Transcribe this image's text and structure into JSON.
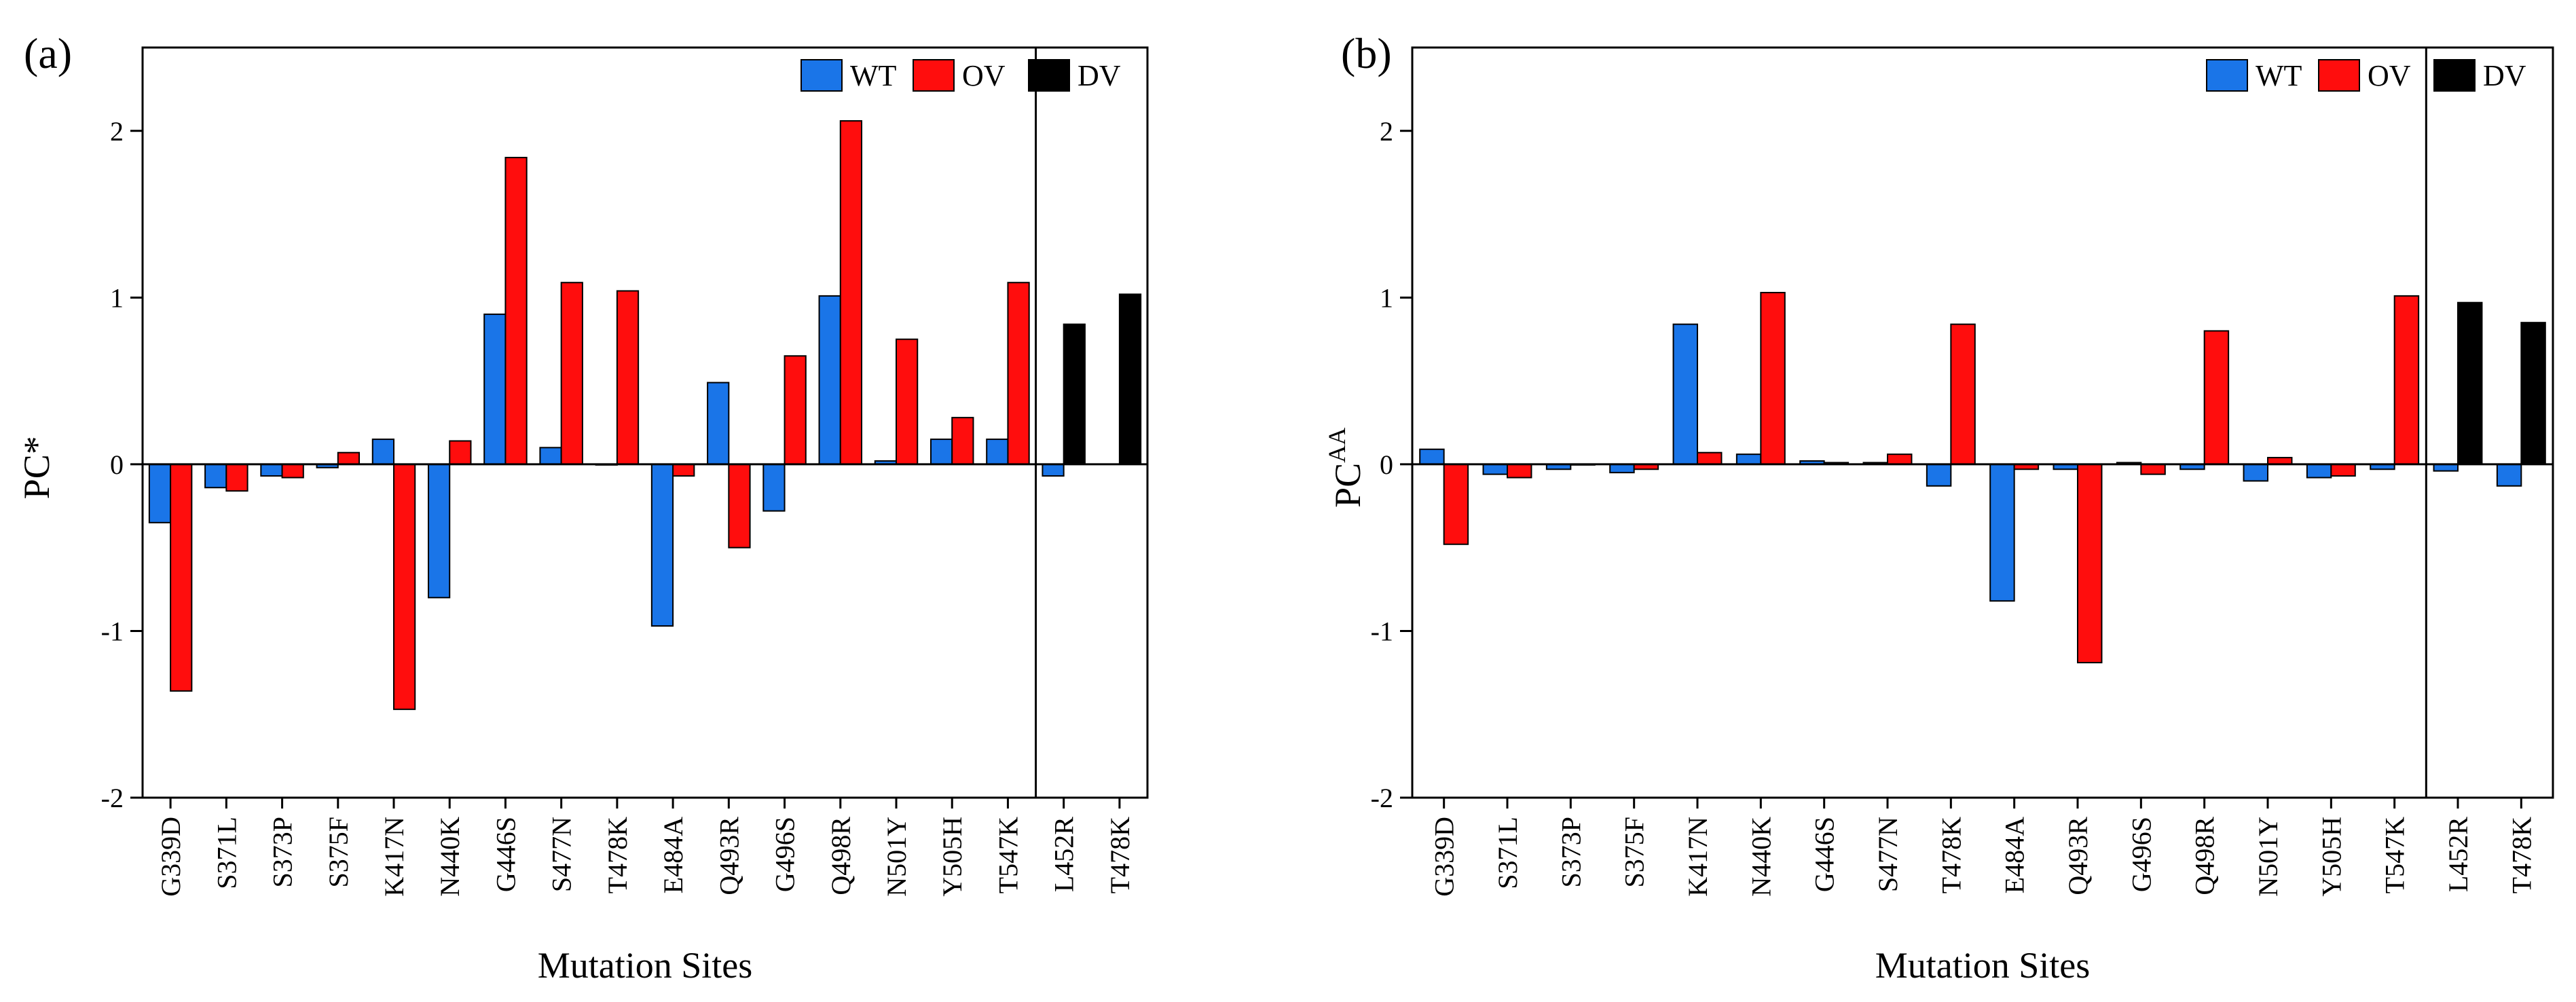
{
  "colors": {
    "WT": "#1a75e8",
    "OV": "#ff0d0d",
    "DV": "#000000"
  },
  "chart_data": [
    {
      "type": "bar",
      "panel_label": "(a)",
      "ylabel_main": "PC*",
      "ylabel_sup": "",
      "xlabel": "Mutation Sites",
      "ylim": [
        -2,
        2.5
      ],
      "yticks": [
        -2,
        -1,
        0,
        1,
        2
      ],
      "legend": [
        "WT",
        "OV",
        "DV"
      ],
      "categories": [
        "G339D",
        "S371L",
        "S373P",
        "S375F",
        "K417N",
        "N440K",
        "G446S",
        "S477N",
        "T478K",
        "E484A",
        "Q493R",
        "G496S",
        "Q498R",
        "N501Y",
        "Y505H",
        "T547K",
        "L452R",
        "T478K"
      ],
      "series": [
        {
          "name": "WT",
          "values": [
            -0.35,
            -0.14,
            -0.07,
            -0.02,
            0.15,
            -0.8,
            0.9,
            0.1,
            0.0,
            -0.97,
            0.49,
            -0.28,
            1.01,
            0.02,
            0.15,
            0.15,
            -0.07,
            null
          ]
        },
        {
          "name": "OV",
          "values": [
            -1.36,
            -0.16,
            -0.08,
            0.07,
            -1.47,
            0.14,
            1.84,
            1.09,
            1.04,
            -0.07,
            -0.5,
            0.65,
            2.06,
            0.75,
            0.28,
            1.09,
            null,
            null
          ]
        },
        {
          "name": "DV",
          "values": [
            null,
            null,
            null,
            null,
            null,
            null,
            null,
            null,
            null,
            null,
            null,
            null,
            null,
            null,
            null,
            null,
            0.84,
            1.02
          ]
        }
      ]
    },
    {
      "type": "bar",
      "panel_label": "(b)",
      "ylabel_main": "PC",
      "ylabel_sup": "AA",
      "xlabel": "Mutation Sites",
      "ylim": [
        -2,
        2.5
      ],
      "yticks": [
        -2,
        -1,
        0,
        1,
        2
      ],
      "legend": [
        "WT",
        "OV",
        "DV"
      ],
      "categories": [
        "G339D",
        "S371L",
        "S373P",
        "S375F",
        "K417N",
        "N440K",
        "G446S",
        "S477N",
        "T478K",
        "E484A",
        "Q493R",
        "G496S",
        "Q498R",
        "N501Y",
        "Y505H",
        "T547K",
        "L452R",
        "T478K"
      ],
      "series": [
        {
          "name": "WT",
          "values": [
            0.09,
            -0.06,
            -0.03,
            -0.05,
            0.84,
            0.06,
            0.02,
            0.01,
            -0.13,
            -0.82,
            -0.03,
            0.01,
            -0.03,
            -0.1,
            -0.08,
            -0.03,
            -0.04,
            -0.13
          ]
        },
        {
          "name": "OV",
          "values": [
            -0.48,
            -0.08,
            0.0,
            -0.03,
            0.07,
            1.03,
            0.01,
            0.06,
            0.84,
            -0.03,
            -1.19,
            -0.06,
            0.8,
            0.04,
            -0.07,
            1.01,
            null,
            null
          ]
        },
        {
          "name": "DV",
          "values": [
            null,
            null,
            null,
            null,
            null,
            null,
            null,
            null,
            null,
            null,
            null,
            null,
            null,
            null,
            null,
            null,
            0.97,
            0.85
          ]
        }
      ]
    }
  ]
}
